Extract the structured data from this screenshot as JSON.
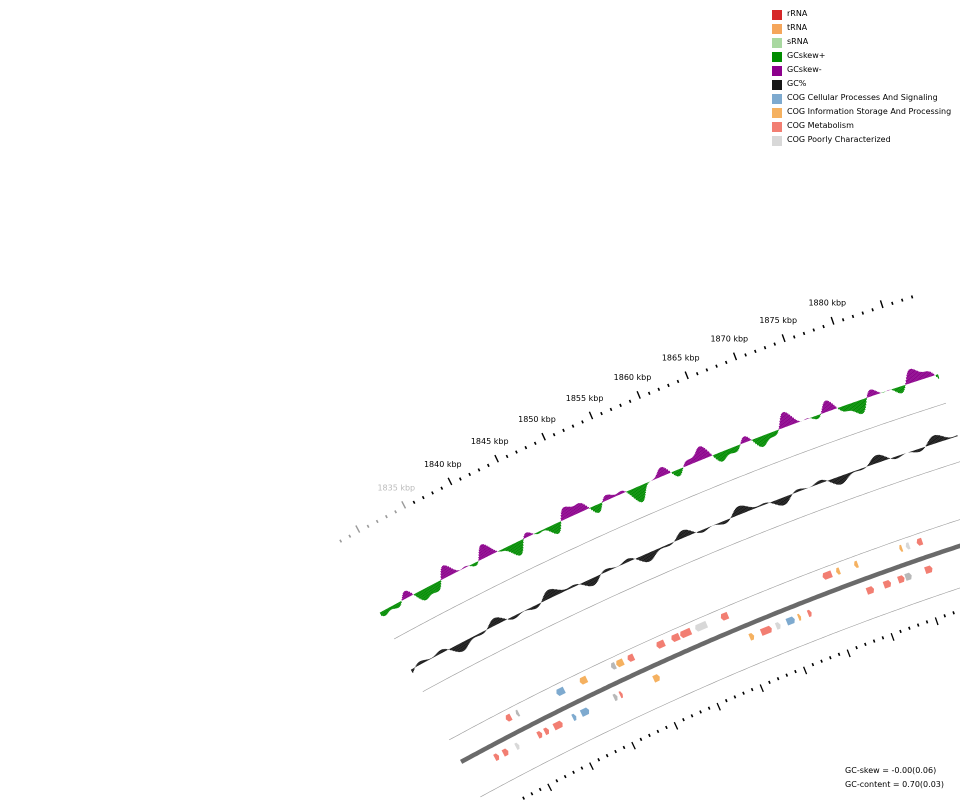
{
  "legend": [
    {
      "label": "rRNA",
      "color": "#d62728"
    },
    {
      "label": "tRNA",
      "color": "#f5a65b"
    },
    {
      "label": "sRNA",
      "color": "#a8d8a0"
    },
    {
      "label": "GCskew+",
      "color": "#008c00"
    },
    {
      "label": "GCskew-",
      "color": "#8c008c"
    },
    {
      "label": "GC%",
      "color": "#161616"
    },
    {
      "label": "COG Cellular Processes And Signaling",
      "color": "#7eaacf"
    },
    {
      "label": "COG Information Storage And Processing",
      "color": "#f5b160"
    },
    {
      "label": "COG Metabolism",
      "color": "#f27e72"
    },
    {
      "label": "COG Poorly Characterized",
      "color": "#d8d8d8"
    }
  ],
  "tick_labels": [
    "1835 kbp",
    "1840 kbp",
    "1845 kbp",
    "1850 kbp",
    "1855 kbp",
    "1860 kbp",
    "1865 kbp",
    "1870 kbp",
    "1875 kbp",
    "1880 kbp"
  ],
  "stats": {
    "gc_skew": "GC-skew = -0.00(0.06)",
    "gc_content": "GC-content = 0.70(0.03)"
  },
  "genes": [
    {
      "pos": 1881.3,
      "strand": 1,
      "len": 0.6,
      "cog": "metabolism"
    },
    {
      "pos": 1879.9,
      "strand": 1,
      "len": 0.4,
      "cog": "poorly"
    },
    {
      "pos": 1879.1,
      "strand": 1,
      "len": 0.3,
      "cog": "information"
    },
    {
      "pos": 1880.6,
      "strand": -1,
      "len": 0.8,
      "cog": "metabolism"
    },
    {
      "pos": 1878.4,
      "strand": -1,
      "len": 0.7,
      "cog": "gray"
    },
    {
      "pos": 1877.6,
      "strand": -1,
      "len": 0.7,
      "cog": "metabolism"
    },
    {
      "pos": 1876.0,
      "strand": -1,
      "len": 0.8,
      "cog": "metabolism"
    },
    {
      "pos": 1874.1,
      "strand": -1,
      "len": 0.8,
      "cog": "metabolism"
    },
    {
      "pos": 1874.2,
      "strand": 1,
      "len": 0.4,
      "cog": "information"
    },
    {
      "pos": 1872.2,
      "strand": 1,
      "len": 0.4,
      "cog": "information"
    },
    {
      "pos": 1871.3,
      "strand": 1,
      "len": 1.0,
      "cog": "metabolism"
    },
    {
      "pos": 1867.5,
      "strand": -1,
      "len": 0.4,
      "cog": "metabolism"
    },
    {
      "pos": 1866.4,
      "strand": -1,
      "len": 0.3,
      "cog": "information"
    },
    {
      "pos": 1865.1,
      "strand": -1,
      "len": 0.9,
      "cog": "cellular"
    },
    {
      "pos": 1863.9,
      "strand": -1,
      "len": 0.5,
      "cog": "poorly"
    },
    {
      "pos": 1862.2,
      "strand": -1,
      "len": 1.2,
      "cog": "metabolism"
    },
    {
      "pos": 1860.9,
      "strand": -1,
      "len": 0.5,
      "cog": "information"
    },
    {
      "pos": 1859.7,
      "strand": 1,
      "len": 0.8,
      "cog": "metabolism"
    },
    {
      "pos": 1857.3,
      "strand": 1,
      "len": 1.3,
      "cog": "poorly"
    },
    {
      "pos": 1855.5,
      "strand": 1,
      "len": 1.2,
      "cog": "metabolism"
    },
    {
      "pos": 1854.2,
      "strand": 1,
      "len": 0.9,
      "cog": "metabolism"
    },
    {
      "pos": 1852.5,
      "strand": 1,
      "len": 0.9,
      "cog": "metabolism"
    },
    {
      "pos": 1849.9,
      "strand": -1,
      "len": 0.7,
      "cog": "information"
    },
    {
      "pos": 1849.0,
      "strand": 1,
      "len": 0.7,
      "cog": "metabolism"
    },
    {
      "pos": 1847.8,
      "strand": 1,
      "len": 0.8,
      "cog": "information"
    },
    {
      "pos": 1846.9,
      "strand": 1,
      "len": 0.5,
      "cog": "gray"
    },
    {
      "pos": 1846.0,
      "strand": -1,
      "len": 0.3,
      "cog": "metabolism"
    },
    {
      "pos": 1845.3,
      "strand": -1,
      "len": 0.4,
      "cog": "gray"
    },
    {
      "pos": 1843.6,
      "strand": 1,
      "len": 0.8,
      "cog": "information"
    },
    {
      "pos": 1841.0,
      "strand": 1,
      "len": 0.9,
      "cog": "cellular"
    },
    {
      "pos": 1841.5,
      "strand": -1,
      "len": 0.9,
      "cog": "cellular"
    },
    {
      "pos": 1840.5,
      "strand": -1,
      "len": 0.4,
      "cog": "cellular"
    },
    {
      "pos": 1838.3,
      "strand": -1,
      "len": 1.0,
      "cog": "metabolism"
    },
    {
      "pos": 1837.2,
      "strand": -1,
      "len": 0.5,
      "cog": "metabolism"
    },
    {
      "pos": 1836.4,
      "strand": -1,
      "len": 0.5,
      "cog": "metabolism"
    },
    {
      "pos": 1835.7,
      "strand": 1,
      "len": 0.3,
      "cog": "gray"
    },
    {
      "pos": 1834.8,
      "strand": 1,
      "len": 0.6,
      "cog": "metabolism"
    },
    {
      "pos": 1833.8,
      "strand": -1,
      "len": 0.4,
      "cog": "poorly"
    },
    {
      "pos": 1832.3,
      "strand": -1,
      "len": 0.6,
      "cog": "metabolism"
    },
    {
      "pos": 1831.3,
      "strand": -1,
      "len": 0.5,
      "cog": "metabolism"
    }
  ]
}
